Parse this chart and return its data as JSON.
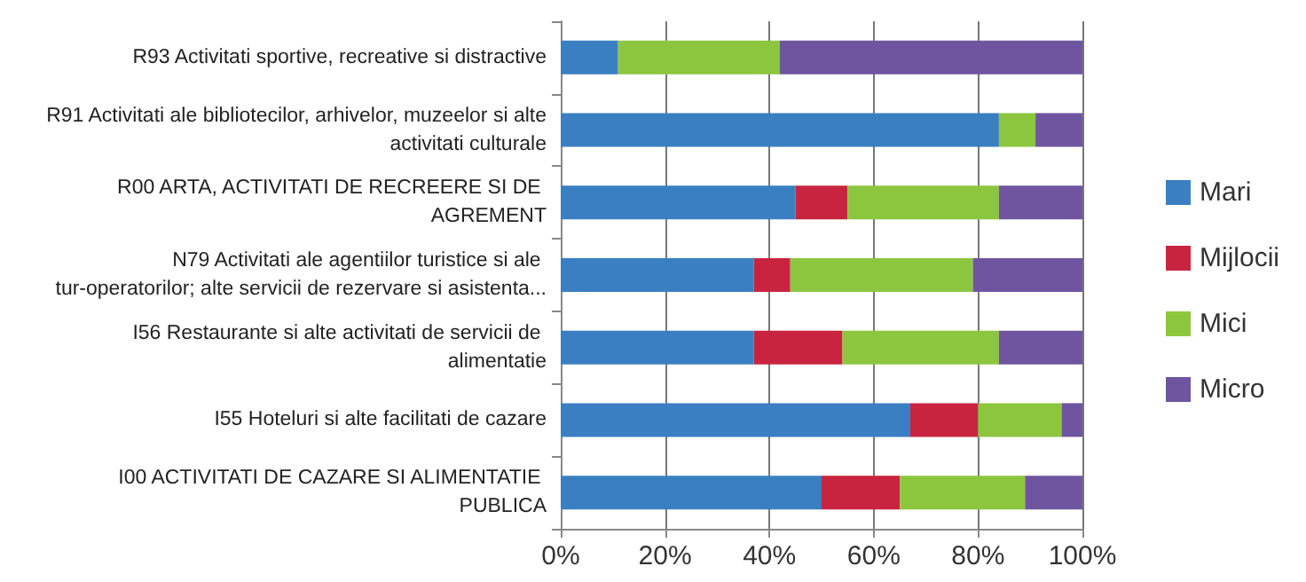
{
  "chart_data": {
    "type": "bar",
    "orientation": "horizontal",
    "stacked": true,
    "categories": [
      "R93 Activitati sportive, recreative si distractive",
      "R91 Activitati ale bibliotecilor, arhivelor, muzeelor si alte activitati culturale",
      "R00 ARTA, ACTIVITATI DE RECREERE SI DE AGREMENT",
      "N79 Activitati ale agentiilor turistice si ale tur-operatorilor; alte servicii de rezervare si asistenta...",
      "I56 Restaurante si alte activitati de servicii de alimentatie",
      "I55 Hoteluri si alte facilitati de cazare",
      "I00 ACTIVITATI DE CAZARE SI ALIMENTATIE PUBLICA"
    ],
    "series": [
      {
        "name": "Mari",
        "color": "#3a7fc1",
        "values": [
          11,
          84,
          45,
          37,
          37,
          67,
          50
        ]
      },
      {
        "name": "Mijlocii",
        "color": "#c9243f",
        "values": [
          0,
          0,
          10,
          7,
          17,
          13,
          15
        ]
      },
      {
        "name": "Mici",
        "color": "#8cc63f",
        "values": [
          31,
          7,
          29,
          35,
          30,
          16,
          24
        ]
      },
      {
        "name": "Micro",
        "color": "#6f55a0",
        "values": [
          58,
          9,
          16,
          21,
          16,
          4,
          11
        ]
      }
    ],
    "xlim": [
      0,
      100
    ],
    "xticks": [
      {
        "value": 0,
        "label": "0%"
      },
      {
        "value": 20,
        "label": "20%"
      },
      {
        "value": 40,
        "label": "40%"
      },
      {
        "value": 60,
        "label": "60%"
      },
      {
        "value": 80,
        "label": "80%"
      },
      {
        "value": 100,
        "label": "100%"
      }
    ],
    "grid": "x",
    "legend": "right"
  }
}
